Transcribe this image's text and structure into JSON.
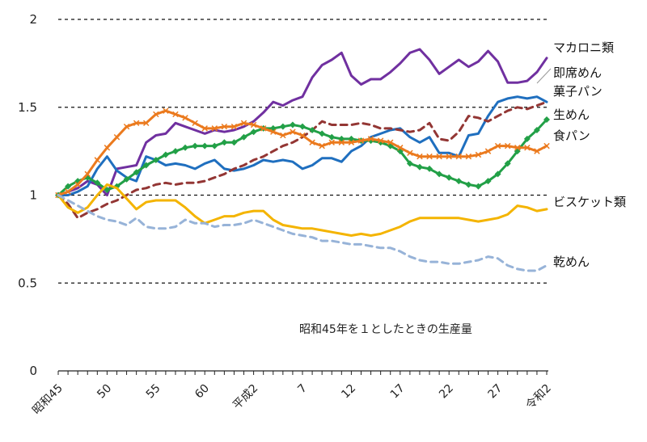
{
  "chart_data": {
    "type": "line",
    "note": "昭和45年を１としたときの生産量",
    "ylim": [
      0,
      2
    ],
    "yticks": [
      {
        "v": 0,
        "label": "0"
      },
      {
        "v": 0.5,
        "label": "0.5"
      },
      {
        "v": 1,
        "label": "1"
      },
      {
        "v": 1.5,
        "label": "1.5"
      },
      {
        "v": 2,
        "label": "2"
      }
    ],
    "xlim": [
      0,
      50
    ],
    "xticks": [
      {
        "i": 0,
        "label": "昭和45"
      },
      {
        "i": 5,
        "label": "50"
      },
      {
        "i": 10,
        "label": "55"
      },
      {
        "i": 15,
        "label": "60"
      },
      {
        "i": 20,
        "label": "平成2"
      },
      {
        "i": 25,
        "label": "7"
      },
      {
        "i": 30,
        "label": "12"
      },
      {
        "i": 35,
        "label": "17"
      },
      {
        "i": 40,
        "label": "22"
      },
      {
        "i": 45,
        "label": "27"
      },
      {
        "i": 50,
        "label": "令和2"
      }
    ],
    "gridlines": "dashed horizontal at 0.5, 1, 1.5, 2",
    "series": [
      {
        "name": "マカロニ類",
        "color": "#7030A0",
        "dash": "solid",
        "marker": "none",
        "values": [
          1.0,
          1.02,
          1.04,
          1.08,
          1.06,
          1.0,
          1.15,
          1.16,
          1.17,
          1.3,
          1.34,
          1.35,
          1.41,
          1.39,
          1.37,
          1.35,
          1.37,
          1.36,
          1.37,
          1.39,
          1.42,
          1.47,
          1.53,
          1.51,
          1.54,
          1.56,
          1.67,
          1.74,
          1.77,
          1.81,
          1.68,
          1.63,
          1.66,
          1.66,
          1.7,
          1.75,
          1.81,
          1.83,
          1.77,
          1.69,
          1.73,
          1.77,
          1.73,
          1.76,
          1.82,
          1.76,
          1.64,
          1.64,
          1.65,
          1.7,
          1.78
        ]
      },
      {
        "name": "即席めん",
        "color": "#1F6FBF",
        "dash": "solid",
        "marker": "none",
        "values": [
          1.0,
          1.0,
          1.02,
          1.05,
          1.15,
          1.22,
          1.14,
          1.1,
          1.08,
          1.22,
          1.2,
          1.17,
          1.18,
          1.17,
          1.15,
          1.18,
          1.2,
          1.15,
          1.14,
          1.15,
          1.17,
          1.2,
          1.19,
          1.2,
          1.19,
          1.15,
          1.17,
          1.21,
          1.21,
          1.19,
          1.25,
          1.28,
          1.33,
          1.35,
          1.37,
          1.38,
          1.33,
          1.3,
          1.33,
          1.24,
          1.24,
          1.22,
          1.34,
          1.35,
          1.45,
          1.53,
          1.55,
          1.56,
          1.55,
          1.56,
          1.53
        ]
      },
      {
        "name": "菓子パン",
        "color": "#933634",
        "dash": "dashed",
        "marker": "none",
        "values": [
          1.0,
          0.95,
          0.87,
          0.9,
          0.92,
          0.95,
          0.97,
          1.0,
          1.03,
          1.04,
          1.06,
          1.07,
          1.06,
          1.07,
          1.07,
          1.08,
          1.1,
          1.12,
          1.15,
          1.17,
          1.2,
          1.22,
          1.25,
          1.28,
          1.3,
          1.33,
          1.37,
          1.42,
          1.4,
          1.4,
          1.4,
          1.41,
          1.4,
          1.38,
          1.38,
          1.37,
          1.36,
          1.37,
          1.41,
          1.32,
          1.31,
          1.36,
          1.45,
          1.44,
          1.42,
          1.45,
          1.48,
          1.5,
          1.49,
          1.51,
          1.53
        ]
      },
      {
        "name": "生めん",
        "color": "#22A047",
        "dash": "solid",
        "marker": "diamond",
        "values": [
          1.0,
          1.05,
          1.08,
          1.1,
          1.07,
          1.03,
          1.05,
          1.09,
          1.13,
          1.17,
          1.2,
          1.23,
          1.25,
          1.27,
          1.28,
          1.28,
          1.28,
          1.3,
          1.3,
          1.33,
          1.36,
          1.38,
          1.38,
          1.39,
          1.4,
          1.39,
          1.37,
          1.35,
          1.33,
          1.32,
          1.32,
          1.31,
          1.31,
          1.3,
          1.28,
          1.25,
          1.18,
          1.16,
          1.15,
          1.12,
          1.1,
          1.08,
          1.06,
          1.05,
          1.08,
          1.12,
          1.18,
          1.25,
          1.32,
          1.37,
          1.43
        ]
      },
      {
        "name": "食パン",
        "color": "#EB7A1E",
        "dash": "solid",
        "marker": "x",
        "values": [
          1.0,
          1.02,
          1.06,
          1.12,
          1.2,
          1.27,
          1.33,
          1.39,
          1.41,
          1.41,
          1.46,
          1.48,
          1.46,
          1.44,
          1.41,
          1.38,
          1.38,
          1.39,
          1.39,
          1.41,
          1.4,
          1.38,
          1.36,
          1.34,
          1.36,
          1.34,
          1.3,
          1.28,
          1.3,
          1.3,
          1.3,
          1.31,
          1.32,
          1.31,
          1.3,
          1.27,
          1.24,
          1.22,
          1.22,
          1.22,
          1.22,
          1.22,
          1.22,
          1.23,
          1.25,
          1.28,
          1.28,
          1.27,
          1.27,
          1.25,
          1.28
        ]
      },
      {
        "name": "ビスケット類",
        "color": "#F4B400",
        "dash": "solid",
        "marker": "none",
        "values": [
          1.0,
          0.93,
          0.9,
          0.93,
          1.0,
          1.06,
          1.04,
          0.98,
          0.92,
          0.96,
          0.97,
          0.97,
          0.97,
          0.93,
          0.88,
          0.84,
          0.86,
          0.88,
          0.88,
          0.9,
          0.91,
          0.91,
          0.86,
          0.83,
          0.82,
          0.81,
          0.81,
          0.8,
          0.79,
          0.78,
          0.77,
          0.78,
          0.77,
          0.78,
          0.8,
          0.82,
          0.85,
          0.87,
          0.87,
          0.87,
          0.87,
          0.87,
          0.86,
          0.85,
          0.86,
          0.87,
          0.89,
          0.94,
          0.93,
          0.91,
          0.92
        ]
      },
      {
        "name": "乾めん",
        "color": "#97B3D8",
        "dash": "dashed",
        "marker": "none",
        "values": [
          1.0,
          0.97,
          0.94,
          0.91,
          0.88,
          0.86,
          0.85,
          0.83,
          0.87,
          0.82,
          0.81,
          0.81,
          0.82,
          0.86,
          0.84,
          0.84,
          0.82,
          0.83,
          0.83,
          0.84,
          0.86,
          0.84,
          0.82,
          0.8,
          0.78,
          0.77,
          0.76,
          0.74,
          0.74,
          0.73,
          0.72,
          0.72,
          0.71,
          0.7,
          0.7,
          0.68,
          0.65,
          0.63,
          0.62,
          0.62,
          0.61,
          0.61,
          0.62,
          0.63,
          0.65,
          0.64,
          0.6,
          0.58,
          0.57,
          0.57,
          0.6
        ]
      }
    ]
  }
}
